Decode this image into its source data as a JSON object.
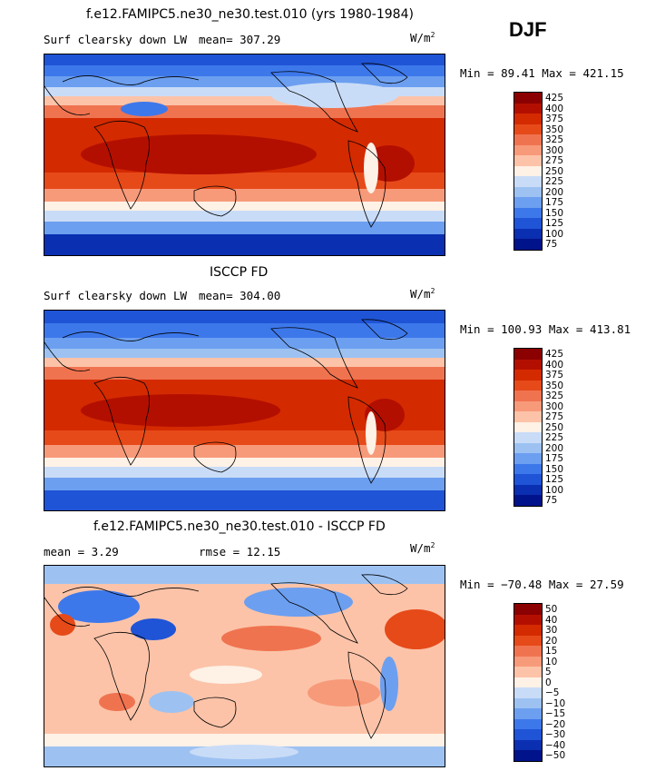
{
  "season": "DJF",
  "panels": [
    {
      "title": "f.e12.FAMIPC5.ne30_ne30.test.010 (yrs 1980-1984)",
      "left_label": "Surf clearsky down LW",
      "mid_label": "mean=  307.29",
      "units": "W/m",
      "units_exp": "2",
      "minmax": "Min =  89.41 Max = 421.15",
      "colorbar": {
        "labels": [
          "425",
          "400",
          "375",
          "350",
          "325",
          "300",
          "275",
          "250",
          "225",
          "200",
          "175",
          "150",
          "125",
          "100",
          "75"
        ],
        "colors": [
          "#8b0000",
          "#b30f00",
          "#d42a00",
          "#e64a19",
          "#f07350",
          "#f79a7a",
          "#fcc3a8",
          "#fef1e6",
          "#c9dcf7",
          "#9dc2f2",
          "#6c9ff0",
          "#3d78eb",
          "#1f54d6",
          "#0a2fb0",
          "#00138a"
        ]
      }
    },
    {
      "title": "ISCCP FD",
      "left_label": "Surf clearsky down LW",
      "mid_label": "mean=  304.00",
      "units": "W/m",
      "units_exp": "2",
      "minmax": "Min = 100.93 Max = 413.81",
      "colorbar": {
        "labels": [
          "425",
          "400",
          "375",
          "350",
          "325",
          "300",
          "275",
          "250",
          "225",
          "200",
          "175",
          "150",
          "125",
          "100",
          "75"
        ],
        "colors": [
          "#8b0000",
          "#b30f00",
          "#d42a00",
          "#e64a19",
          "#f07350",
          "#f79a7a",
          "#fcc3a8",
          "#fef1e6",
          "#c9dcf7",
          "#9dc2f2",
          "#6c9ff0",
          "#3d78eb",
          "#1f54d6",
          "#0a2fb0",
          "#00138a"
        ]
      }
    },
    {
      "title": "f.e12.FAMIPC5.ne30_ne30.test.010 - ISCCP FD",
      "left_label": "mean =    3.29",
      "mid_label": "rmse =   12.15",
      "units": "W/m",
      "units_exp": "2",
      "minmax": "Min = −70.48 Max =  27.59",
      "colorbar": {
        "labels": [
          "50",
          "40",
          "30",
          "20",
          "15",
          "10",
          "5",
          "0",
          "−5",
          "−10",
          "−15",
          "−20",
          "−30",
          "−40",
          "−50"
        ],
        "colors": [
          "#8b0000",
          "#b30f00",
          "#d42a00",
          "#e64a19",
          "#f07350",
          "#f79a7a",
          "#fcc3a8",
          "#fef1e6",
          "#c9dcf7",
          "#9dc2f2",
          "#6c9ff0",
          "#3d78eb",
          "#1f54d6",
          "#0a2fb0",
          "#00138a"
        ]
      }
    }
  ]
}
